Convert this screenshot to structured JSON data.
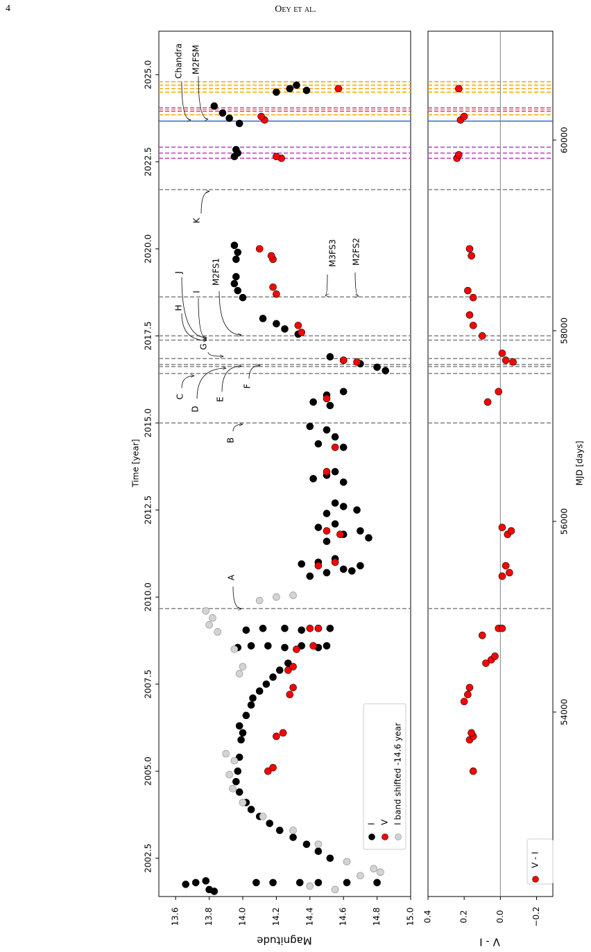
{
  "header": {
    "page_number": "4",
    "running_head": "Oey et al."
  },
  "chart_data": [
    {
      "type": "scatter",
      "x_label": "Time [year]",
      "y_label": "Magnitude",
      "xlim": [
        2001.4,
        2026.25
      ],
      "xticks": [
        2002.5,
        {
          "value": 2005,
          "label": "2005.0"
        },
        2007.5,
        {
          "value": 2010,
          "label": "2010.0"
        },
        2012.5,
        {
          "value": 2015,
          "label": "2015.0"
        },
        2017.5,
        {
          "value": 2020,
          "label": "2020.0"
        },
        2022.5,
        {
          "value": 2025,
          "label": "2025.0"
        }
      ],
      "ylim": [
        13.5,
        15.0
      ],
      "yticks": [
        13.6,
        13.8,
        {
          "value": 14,
          "label": "14.0"
        },
        14.2,
        14.4,
        14.6,
        14.8,
        {
          "value": 15,
          "label": "15.0"
        }
      ],
      "legend": "lower right",
      "series": [
        {
          "name": "I",
          "color": "#000000",
          "x": [
            2001.75,
            2001.8,
            2001.85,
            2001.6,
            2001.55,
            2001.8,
            2001.8,
            2001.8,
            2001.8,
            2001.8,
            2001.8,
            2002.5,
            2002.7,
            2002.9,
            2003.1,
            2003.3,
            2003.5,
            2003.7,
            2003.9,
            2004.1,
            2004.4,
            2004.7,
            2005.0,
            2005.4,
            2005.9,
            2006.1,
            2006.3,
            2006.6,
            2006.9,
            2007.1,
            2007.3,
            2007.5,
            2007.7,
            2007.9,
            2008.1,
            2008.55,
            2008.6,
            2008.6,
            2008.55,
            2008.6,
            2008.55,
            2008.6,
            2009.05,
            2009.1,
            2009.1,
            2009.05,
            2009.1,
            2009.1,
            2010.6,
            2010.7,
            2010.8,
            2010.9,
            2011.0,
            2011.1,
            2010.75,
            2010.95,
            2011.6,
            2011.8,
            2011.9,
            2012.0,
            2011.7,
            2012.1,
            2012.4,
            2012.6,
            2012.5,
            2012.7,
            2013.4,
            2013.5,
            2013.6,
            2013.3,
            2014.4,
            2014.6,
            2014.8,
            2014.3,
            2014.9,
            2015.6,
            2015.8,
            2015.9,
            2015.5,
            2016.9,
            2016.8,
            2016.7,
            2016.6,
            2016.5,
            2017.55,
            2017.7,
            2017.85,
            2018.0,
            2018.6,
            2018.8,
            2019.0,
            2019.2,
            2019.7,
            2019.9,
            2020.1,
            2022.65,
            2022.75,
            2022.85,
            2023.6,
            2023.75,
            2023.9,
            2024.1,
            2024.5,
            2024.6,
            2024.7,
            2024.55
          ],
          "values": [
            13.66,
            13.72,
            13.78,
            13.8,
            13.83,
            14.08,
            14.18,
            14.34,
            14.45,
            14.62,
            14.8,
            14.52,
            14.45,
            14.38,
            14.3,
            14.22,
            14.16,
            14.1,
            14.05,
            14.02,
            13.98,
            13.96,
            13.97,
            13.98,
            13.99,
            14.0,
            13.98,
            14.02,
            14.05,
            14.06,
            14.1,
            14.14,
            14.18,
            14.22,
            14.27,
            13.97,
            14.05,
            14.15,
            14.25,
            14.35,
            14.45,
            14.5,
            14.02,
            14.12,
            14.25,
            14.35,
            14.45,
            14.52,
            14.4,
            14.5,
            14.6,
            14.7,
            14.45,
            14.55,
            14.65,
            14.35,
            14.5,
            14.6,
            14.7,
            14.45,
            14.75,
            14.55,
            14.5,
            14.6,
            14.68,
            14.55,
            14.42,
            14.5,
            14.55,
            14.6,
            14.45,
            14.55,
            14.5,
            14.6,
            14.4,
            14.42,
            14.5,
            14.6,
            14.52,
            14.52,
            14.6,
            14.7,
            14.8,
            14.85,
            14.33,
            14.25,
            14.2,
            14.12,
            14.0,
            13.97,
            13.95,
            13.96,
            13.96,
            13.97,
            13.95,
            13.95,
            13.97,
            13.96,
            13.98,
            13.92,
            13.88,
            13.83,
            14.2,
            14.28,
            14.32,
            14.38
          ]
        },
        {
          "name": "V",
          "color": "#ff0000",
          "x": [
            2005.0,
            2005.1,
            2006.0,
            2006.1,
            2007.2,
            2007.4,
            2007.9,
            2008.0,
            2008.5,
            2008.6,
            2009.1,
            2009.1,
            2010.9,
            2011.0,
            2011.9,
            2011.8,
            2013.6,
            2014.3,
            2015.7,
            2016.8,
            2016.75,
            2017.6,
            2017.8,
            2018.7,
            2018.9,
            2019.7,
            2019.8,
            2020.0,
            2022.6,
            2022.65,
            2023.7,
            2023.8,
            2024.6
          ],
          "values": [
            14.15,
            14.18,
            14.2,
            14.24,
            14.28,
            14.3,
            14.27,
            14.3,
            14.32,
            14.42,
            14.4,
            14.45,
            14.45,
            14.55,
            14.5,
            14.58,
            14.5,
            14.55,
            14.5,
            14.6,
            14.68,
            14.35,
            14.33,
            14.2,
            14.18,
            14.18,
            14.17,
            14.1,
            14.23,
            14.2,
            14.13,
            14.11,
            14.57
          ]
        },
        {
          "name": "I band shifted -14.6 year",
          "color": "#d3d3d3",
          "x": [
            2001.6,
            2001.7,
            2002.0,
            2002.1,
            2002.2,
            2002.4,
            2002.9,
            2003.3,
            2003.7,
            2004.1,
            2004.5,
            2004.9,
            2005.3,
            2005.5,
            2007.8,
            2008.0,
            2008.5,
            2009.0,
            2009.2,
            2009.4,
            2009.6,
            2009.9,
            2010.0,
            2010.05
          ],
          "values": [
            14.55,
            14.4,
            14.7,
            14.82,
            14.78,
            14.62,
            14.45,
            14.3,
            14.12,
            14.0,
            13.94,
            13.92,
            13.95,
            13.9,
            13.98,
            14.0,
            13.95,
            13.85,
            13.8,
            13.82,
            13.78,
            14.1,
            14.2,
            14.3
          ]
        }
      ],
      "reference_lines": [
        {
          "value": 2009.67,
          "color": "#808080",
          "style": "dashed"
        },
        {
          "value": 2015.0,
          "color": "#808080",
          "style": "dashed"
        },
        {
          "value": 2016.42,
          "color": "#808080",
          "style": "dashed"
        },
        {
          "value": 2016.62,
          "color": "#808080",
          "style": "dashed"
        },
        {
          "value": 2016.68,
          "color": "#808080",
          "style": "dashed"
        },
        {
          "value": 2016.85,
          "color": "#808080",
          "style": "dashed"
        },
        {
          "value": 2017.38,
          "color": "#808080",
          "style": "dashed"
        },
        {
          "value": 2017.5,
          "color": "#808080",
          "style": "dashed"
        },
        {
          "value": 2018.62,
          "color": "#808080",
          "style": "dashed"
        },
        {
          "value": 2021.7,
          "color": "#808080",
          "style": "dashed"
        },
        {
          "value": 2022.6,
          "color": "#c040c0",
          "style": "dashed"
        },
        {
          "value": 2022.75,
          "color": "#c040c0",
          "style": "dashed"
        },
        {
          "value": 2022.92,
          "color": "#c040c0",
          "style": "dashed"
        },
        {
          "value": 2023.67,
          "color": "#4060c0",
          "style": "solid"
        },
        {
          "value": 2023.85,
          "color": "#ffa500",
          "style": "dashed"
        },
        {
          "value": 2023.95,
          "color": "#c040c0",
          "style": "dashed"
        },
        {
          "value": 2024.0,
          "color": "#ffa500",
          "style": "dashed"
        },
        {
          "value": 2024.05,
          "color": "#c040c0",
          "style": "dashed"
        },
        {
          "value": 2024.5,
          "color": "#ffa500",
          "style": "dashed"
        },
        {
          "value": 2024.6,
          "color": "#ffa500",
          "style": "dashed"
        },
        {
          "value": 2024.7,
          "color": "#ffa500",
          "style": "dashed"
        },
        {
          "value": 2024.8,
          "color": "#ffa500",
          "style": "dashed"
        }
      ],
      "annotations": [
        "A",
        "B",
        "C",
        "D",
        "E",
        "F",
        "G",
        "H",
        "I",
        "J",
        "M2FS1",
        "K",
        "M3FS3",
        "M2FS2",
        "Chandra",
        "M2FSM"
      ]
    },
    {
      "type": "scatter",
      "x_label": "MJD [days]",
      "y_label": "V - I",
      "xlim": [
        2001.4,
        2026.25
      ],
      "x2lim": [
        52065,
        61142
      ],
      "x2ticks": [
        54000,
        56000,
        58000,
        60000
      ],
      "ylim": [
        0.4,
        -0.29
      ],
      "yticks": [
        0.4,
        0.2,
        {
          "value": 0,
          "label": "0.0"
        },
        {
          "value": -0.2,
          "label": "−0.2"
        }
      ],
      "zero_line": 0,
      "legend": "lower right",
      "series": [
        {
          "name": "V - I",
          "color": "#ff0000",
          "x": [
            2005.0,
            2005.9,
            2006.0,
            2006.1,
            2007.0,
            2007.2,
            2007.4,
            2008.1,
            2008.2,
            2008.3,
            2008.9,
            2009.1,
            2009.1,
            2010.6,
            2010.7,
            2010.9,
            2011.8,
            2011.9,
            2012.0,
            2015.6,
            2015.9,
            2016.8,
            2016.75,
            2017.0,
            2017.5,
            2017.8,
            2018.1,
            2018.6,
            2018.8,
            2019.8,
            2020.0,
            2022.6,
            2022.7,
            2023.7,
            2023.8,
            2024.6
          ],
          "values": [
            0.15,
            0.17,
            0.15,
            0.16,
            0.2,
            0.18,
            0.17,
            0.08,
            0.05,
            0.03,
            0.1,
            0.01,
            -0.01,
            -0.01,
            -0.05,
            -0.03,
            -0.04,
            -0.06,
            -0.01,
            0.07,
            0.01,
            -0.03,
            -0.07,
            -0.01,
            0.1,
            0.15,
            0.17,
            0.15,
            0.18,
            0.16,
            0.17,
            0.24,
            0.23,
            0.22,
            0.2,
            0.23
          ]
        }
      ]
    }
  ]
}
